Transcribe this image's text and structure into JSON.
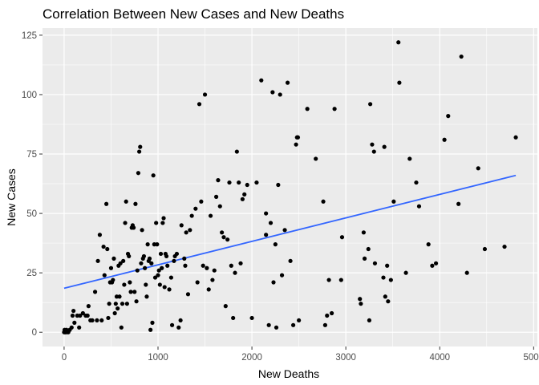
{
  "chart_data": {
    "type": "scatter",
    "title": "Correlation Between New Cases and New Deaths",
    "xlabel": "New Deaths",
    "ylabel": "New Cases",
    "xlim": [
      -230,
      5040
    ],
    "ylim": [
      -6,
      128
    ],
    "x_ticks": [
      0,
      1000,
      2000,
      3000,
      4000,
      5000
    ],
    "y_ticks": [
      0,
      25,
      50,
      75,
      100,
      125
    ],
    "x_tick_labels": [
      "0",
      "1000",
      "2000",
      "3000",
      "4000",
      "5000"
    ],
    "y_tick_labels": [
      "0",
      "25",
      "50",
      "75",
      "100",
      "125"
    ],
    "grid": true,
    "colors": {
      "panel_background": "#ebebeb",
      "grid_major": "#ffffff",
      "point": "#000000",
      "trend_line": "#3366ff",
      "tick_label": "#4d4d4d"
    },
    "trend_line": {
      "x": [
        0,
        4810
      ],
      "y": [
        18.5,
        66
      ]
    },
    "points": [
      [
        0,
        0
      ],
      [
        5,
        1
      ],
      [
        10,
        0
      ],
      [
        15,
        0
      ],
      [
        25,
        1
      ],
      [
        30,
        0
      ],
      [
        45,
        0
      ],
      [
        60,
        1
      ],
      [
        80,
        2
      ],
      [
        90,
        7
      ],
      [
        100,
        9
      ],
      [
        110,
        4
      ],
      [
        140,
        7
      ],
      [
        160,
        2
      ],
      [
        170,
        7
      ],
      [
        200,
        8
      ],
      [
        230,
        7
      ],
      [
        250,
        7
      ],
      [
        260,
        11
      ],
      [
        280,
        5
      ],
      [
        300,
        5
      ],
      [
        330,
        17
      ],
      [
        350,
        5
      ],
      [
        360,
        30
      ],
      [
        380,
        41
      ],
      [
        400,
        5
      ],
      [
        420,
        36
      ],
      [
        430,
        24
      ],
      [
        450,
        54
      ],
      [
        460,
        35
      ],
      [
        470,
        6
      ],
      [
        480,
        12
      ],
      [
        490,
        21
      ],
      [
        500,
        27
      ],
      [
        510,
        21
      ],
      [
        520,
        22
      ],
      [
        530,
        31
      ],
      [
        540,
        8
      ],
      [
        550,
        12
      ],
      [
        560,
        15
      ],
      [
        570,
        10
      ],
      [
        580,
        28
      ],
      [
        590,
        15
      ],
      [
        600,
        29
      ],
      [
        610,
        2
      ],
      [
        620,
        12
      ],
      [
        630,
        30
      ],
      [
        640,
        20
      ],
      [
        650,
        46
      ],
      [
        660,
        55
      ],
      [
        670,
        12
      ],
      [
        680,
        33
      ],
      [
        690,
        32
      ],
      [
        700,
        21
      ],
      [
        710,
        17
      ],
      [
        720,
        44
      ],
      [
        730,
        45
      ],
      [
        740,
        44
      ],
      [
        750,
        17
      ],
      [
        760,
        54
      ],
      [
        770,
        13
      ],
      [
        780,
        26
      ],
      [
        790,
        67
      ],
      [
        800,
        76
      ],
      [
        810,
        78
      ],
      [
        820,
        29
      ],
      [
        830,
        43
      ],
      [
        840,
        31
      ],
      [
        850,
        32
      ],
      [
        860,
        27
      ],
      [
        870,
        20
      ],
      [
        880,
        15
      ],
      [
        890,
        37
      ],
      [
        900,
        30
      ],
      [
        910,
        31
      ],
      [
        920,
        1
      ],
      [
        930,
        29
      ],
      [
        940,
        4
      ],
      [
        950,
        66
      ],
      [
        960,
        37
      ],
      [
        970,
        23
      ],
      [
        980,
        46
      ],
      [
        990,
        37
      ],
      [
        1000,
        24
      ],
      [
        1010,
        26
      ],
      [
        1020,
        20
      ],
      [
        1030,
        33
      ],
      [
        1040,
        27
      ],
      [
        1050,
        46
      ],
      [
        1060,
        48
      ],
      [
        1070,
        19
      ],
      [
        1080,
        33
      ],
      [
        1090,
        32
      ],
      [
        1100,
        28
      ],
      [
        1120,
        18
      ],
      [
        1140,
        23
      ],
      [
        1150,
        3
      ],
      [
        1170,
        30
      ],
      [
        1180,
        32
      ],
      [
        1200,
        33
      ],
      [
        1220,
        2
      ],
      [
        1240,
        5
      ],
      [
        1250,
        45
      ],
      [
        1280,
        31
      ],
      [
        1290,
        28
      ],
      [
        1300,
        42
      ],
      [
        1320,
        16
      ],
      [
        1340,
        43
      ],
      [
        1360,
        49
      ],
      [
        1400,
        52
      ],
      [
        1420,
        21
      ],
      [
        1440,
        96
      ],
      [
        1460,
        55
      ],
      [
        1480,
        28
      ],
      [
        1500,
        100
      ],
      [
        1520,
        27
      ],
      [
        1540,
        18
      ],
      [
        1560,
        49
      ],
      [
        1580,
        22
      ],
      [
        1600,
        26
      ],
      [
        1620,
        57
      ],
      [
        1640,
        64
      ],
      [
        1660,
        53
      ],
      [
        1680,
        42
      ],
      [
        1700,
        40
      ],
      [
        1720,
        11
      ],
      [
        1740,
        39
      ],
      [
        1760,
        63
      ],
      [
        1780,
        28
      ],
      [
        1800,
        6
      ],
      [
        1820,
        25
      ],
      [
        1840,
        76
      ],
      [
        1860,
        63
      ],
      [
        1880,
        29
      ],
      [
        1900,
        56
      ],
      [
        1920,
        58
      ],
      [
        1950,
        62
      ],
      [
        2000,
        6
      ],
      [
        2050,
        63
      ],
      [
        2100,
        106
      ],
      [
        2150,
        41
      ],
      [
        2180,
        3
      ],
      [
        2200,
        46
      ],
      [
        2220,
        101
      ],
      [
        2230,
        21
      ],
      [
        2250,
        37
      ],
      [
        2260,
        2
      ],
      [
        2280,
        62
      ],
      [
        2300,
        100
      ],
      [
        2320,
        24
      ],
      [
        2350,
        43
      ],
      [
        2380,
        105
      ],
      [
        2410,
        30
      ],
      [
        2440,
        3
      ],
      [
        2470,
        79
      ],
      [
        2480,
        82
      ],
      [
        2490,
        82
      ],
      [
        2500,
        5
      ],
      [
        2590,
        94
      ],
      [
        2680,
        73
      ],
      [
        2760,
        55
      ],
      [
        2780,
        3
      ],
      [
        2800,
        7
      ],
      [
        2820,
        22
      ],
      [
        2850,
        8
      ],
      [
        2880,
        94
      ],
      [
        2950,
        22
      ],
      [
        3150,
        14
      ],
      [
        3160,
        12
      ],
      [
        3190,
        42
      ],
      [
        3200,
        31
      ],
      [
        3240,
        35
      ],
      [
        3250,
        5
      ],
      [
        3260,
        96
      ],
      [
        3280,
        79
      ],
      [
        3300,
        76
      ],
      [
        3310,
        29
      ],
      [
        3400,
        23
      ],
      [
        3410,
        78
      ],
      [
        3420,
        15
      ],
      [
        3440,
        28
      ],
      [
        3450,
        13
      ],
      [
        3480,
        22
      ],
      [
        3560,
        122
      ],
      [
        3570,
        105
      ],
      [
        3640,
        25
      ],
      [
        3680,
        73
      ],
      [
        3750,
        63
      ],
      [
        3780,
        53
      ],
      [
        3880,
        37
      ],
      [
        3920,
        28
      ],
      [
        3960,
        29
      ],
      [
        4050,
        81
      ],
      [
        4090,
        91
      ],
      [
        4200,
        54
      ],
      [
        4290,
        25
      ],
      [
        4410,
        69
      ],
      [
        4480,
        35
      ],
      [
        4690,
        36
      ],
      [
        4810,
        82
      ],
      [
        4230,
        116
      ],
      [
        3510,
        55
      ],
      [
        2960,
        40
      ],
      [
        2150,
        50
      ]
    ]
  }
}
